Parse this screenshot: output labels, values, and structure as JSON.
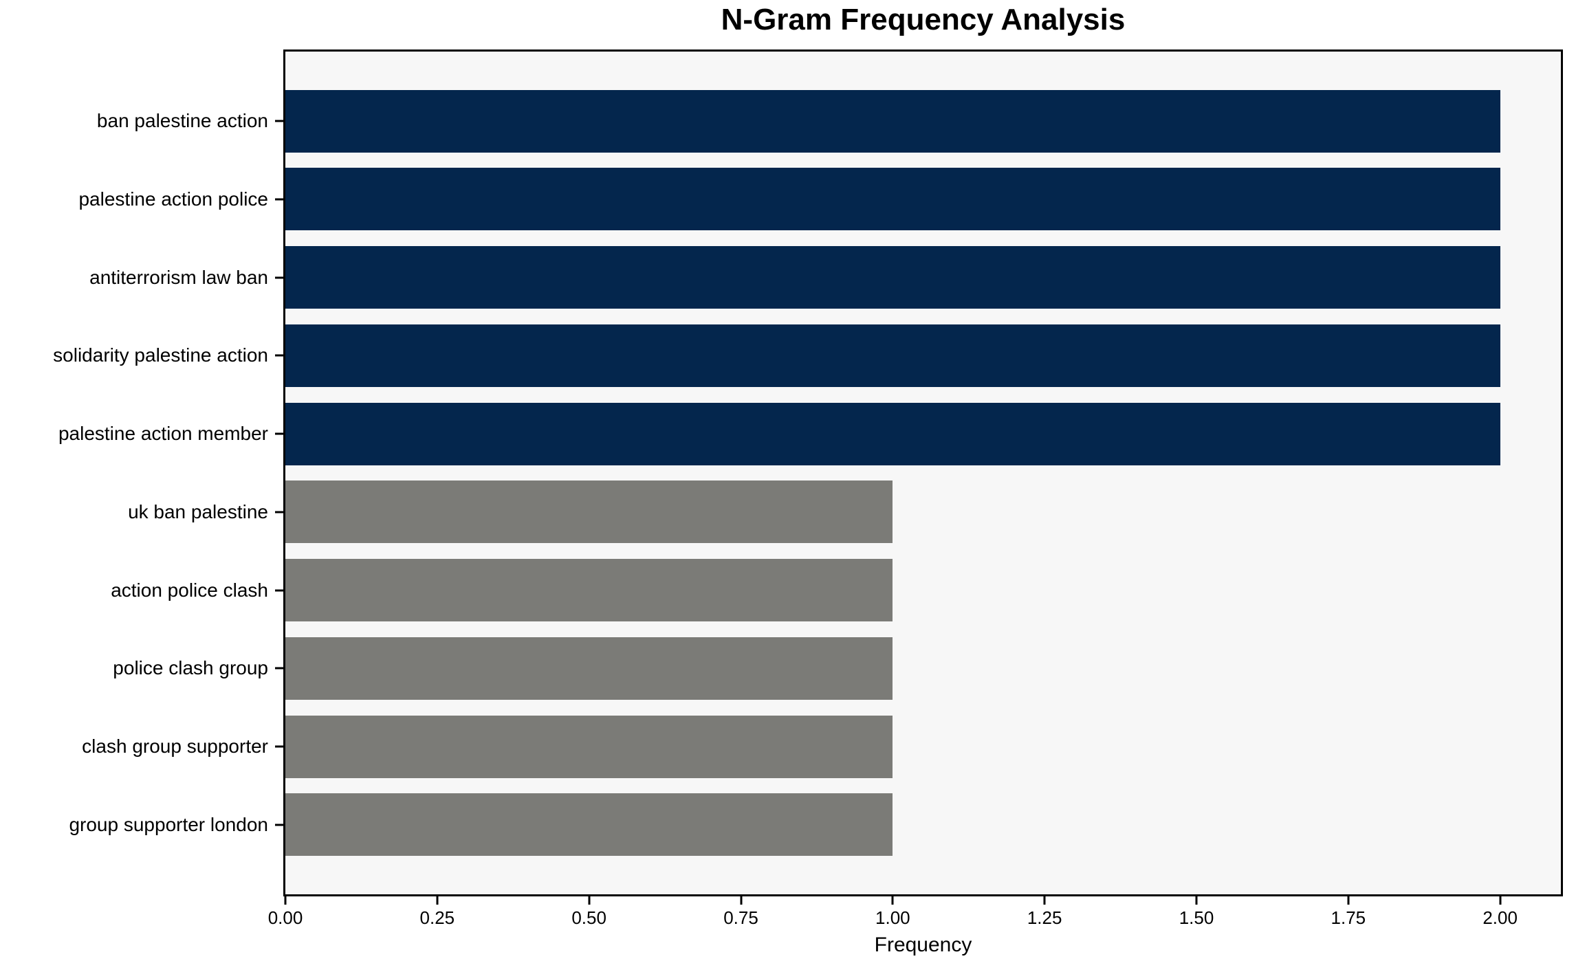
{
  "chart_data": {
    "type": "bar",
    "orientation": "horizontal",
    "title": "N-Gram Frequency Analysis",
    "xlabel": "Frequency",
    "ylabel": "",
    "categories": [
      "ban palestine action",
      "palestine action police",
      "antiterrorism law ban",
      "solidarity palestine action",
      "palestine action member",
      "uk ban palestine",
      "action police clash",
      "police clash group",
      "clash group supporter",
      "group supporter london"
    ],
    "values": [
      2,
      2,
      2,
      2,
      2,
      1,
      1,
      1,
      1,
      1
    ],
    "bar_colors": [
      "#04264d",
      "#04264d",
      "#04264d",
      "#04264d",
      "#04264d",
      "#7b7b77",
      "#7b7b77",
      "#7b7b77",
      "#7b7b77",
      "#7b7b77"
    ],
    "xlim": [
      0,
      2.1
    ],
    "x_ticks": [
      0,
      0.25,
      0.5,
      0.75,
      1.0,
      1.25,
      1.5,
      1.75,
      2.0
    ],
    "x_tick_labels": [
      "0.00",
      "0.25",
      "0.50",
      "0.75",
      "1.00",
      "1.25",
      "1.50",
      "1.75",
      "2.00"
    ],
    "grid": false,
    "legend": "none",
    "plot_background": "#f7f7f7",
    "figure_background": "#ffffff",
    "spine_color": "#000000"
  }
}
